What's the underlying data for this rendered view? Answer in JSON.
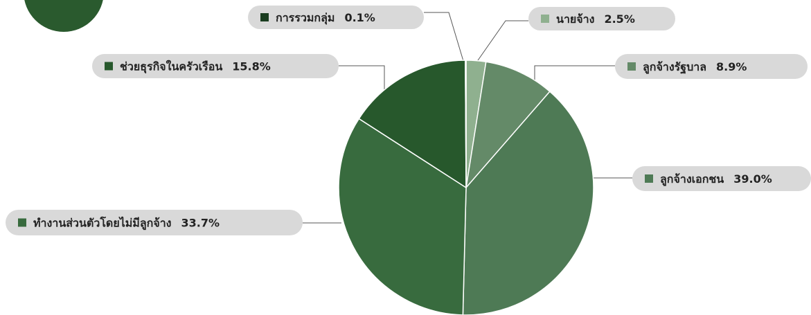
{
  "chart_data": {
    "type": "pie",
    "categories": [
      "นายจ้าง",
      "ลูกจ้างรัฐบาล",
      "ลูกจ้างเอกชน",
      "ทำงานส่วนตัวโดยไม่มีลูกจ้าง",
      "ช่วยธุรกิจในครัวเรือน",
      "การรวมกลุ่ม"
    ],
    "values": [
      2.5,
      8.9,
      39.0,
      33.7,
      15.8,
      0.1
    ],
    "value_labels": [
      "2.5%",
      "8.9%",
      "39.0%",
      "33.7%",
      "15.8%",
      "0.1%"
    ],
    "colors": [
      "#8fb08f",
      "#648a68",
      "#4e7a55",
      "#386b3e",
      "#27582c",
      "#1a3d1f"
    ]
  }
}
